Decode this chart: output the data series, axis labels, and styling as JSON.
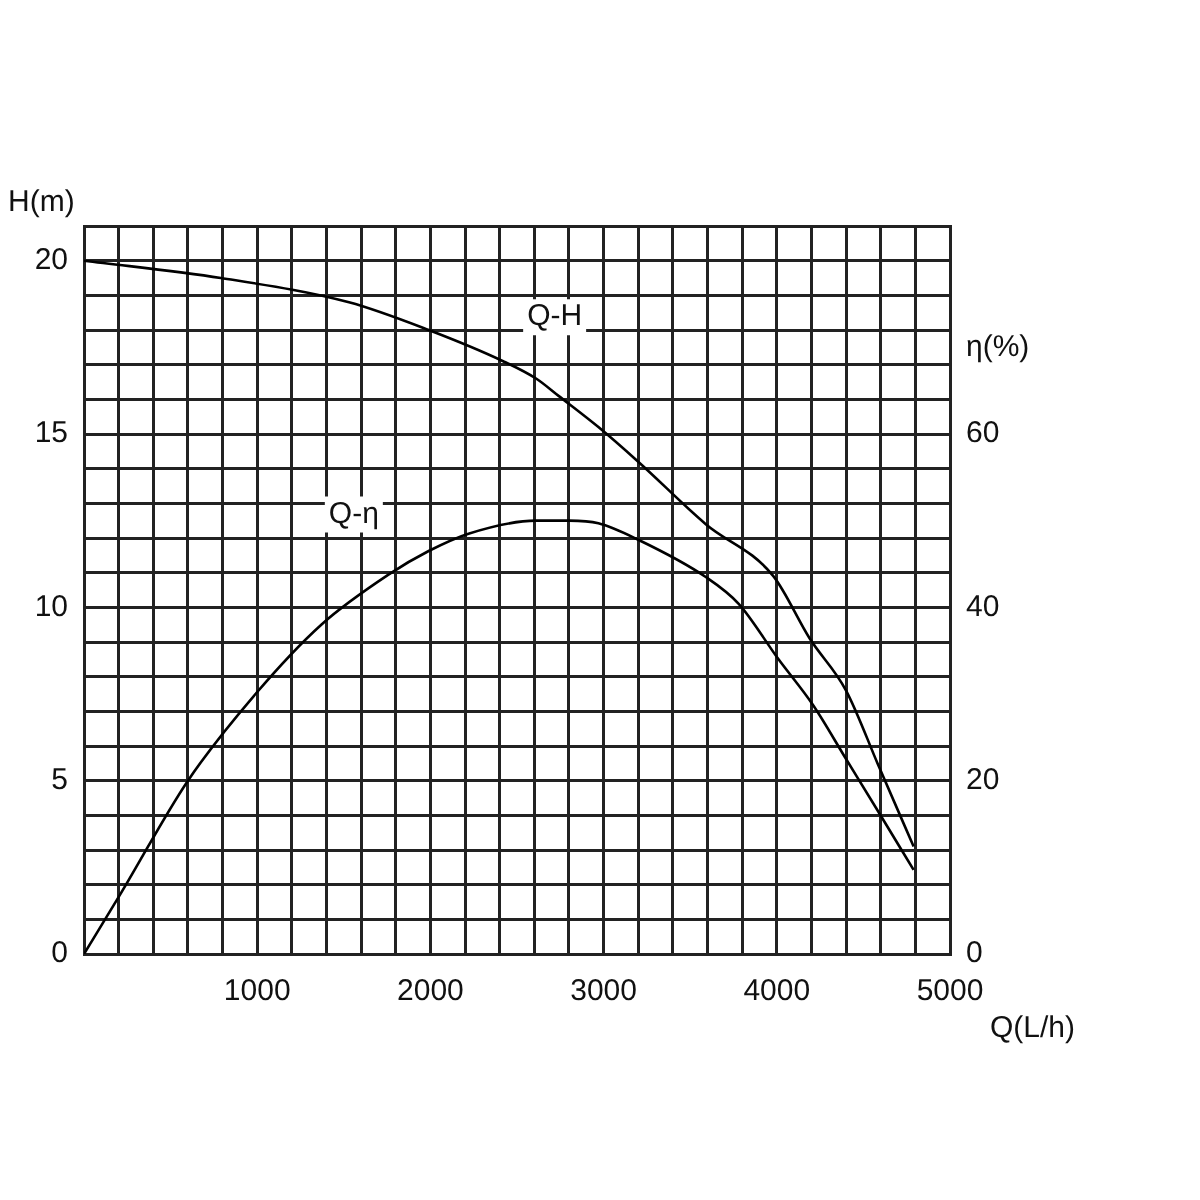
{
  "chart_data": {
    "type": "line",
    "xlabel": "Q(L/h)",
    "ylabel": "H(m)",
    "y2label": "η(%)",
    "xlim": [
      0,
      5000
    ],
    "xticks": [
      {
        "value": 0,
        "label": null
      },
      {
        "value": 200,
        "label": null
      },
      {
        "value": 400,
        "label": null
      },
      {
        "value": 600,
        "label": null
      },
      {
        "value": 800,
        "label": null
      },
      1000,
      {
        "value": 1200,
        "label": null
      },
      {
        "value": 1400,
        "label": null
      },
      {
        "value": 1600,
        "label": null
      },
      {
        "value": 1800,
        "label": null
      },
      2000,
      {
        "value": 2200,
        "label": null
      },
      {
        "value": 2400,
        "label": null
      },
      {
        "value": 2600,
        "label": null
      },
      {
        "value": 2800,
        "label": null
      },
      3000,
      {
        "value": 3200,
        "label": null
      },
      {
        "value": 3400,
        "label": null
      },
      {
        "value": 3600,
        "label": null
      },
      {
        "value": 3800,
        "label": null
      },
      4000,
      {
        "value": 4200,
        "label": null
      },
      {
        "value": 4400,
        "label": null
      },
      {
        "value": 4600,
        "label": null
      },
      {
        "value": 4800,
        "label": null
      },
      5000
    ],
    "ylim": [
      0,
      21
    ],
    "yticks": [
      0,
      {
        "value": 1,
        "label": null
      },
      {
        "value": 2,
        "label": null
      },
      {
        "value": 3,
        "label": null
      },
      {
        "value": 4,
        "label": null
      },
      5,
      {
        "value": 6,
        "label": null
      },
      {
        "value": 7,
        "label": null
      },
      {
        "value": 8,
        "label": null
      },
      {
        "value": 9,
        "label": null
      },
      10,
      {
        "value": 11,
        "label": null
      },
      {
        "value": 12,
        "label": null
      },
      {
        "value": 13,
        "label": null
      },
      {
        "value": 14,
        "label": null
      },
      15,
      {
        "value": 16,
        "label": null
      },
      {
        "value": 17,
        "label": null
      },
      {
        "value": 18,
        "label": null
      },
      {
        "value": 19,
        "label": null
      },
      20,
      {
        "value": 21,
        "label": null
      }
    ],
    "y2lim": [
      0,
      84
    ],
    "y2ticks": [
      0,
      20,
      40,
      60
    ],
    "grid": true,
    "legend": false,
    "marker": "none",
    "line_style": "solid",
    "series": [
      {
        "name": "Q-H",
        "color": "#000000",
        "x": [
          0,
          790,
          1530,
          1990,
          2420,
          2610,
          2740,
          2970,
          3200,
          3590,
          3980,
          4190,
          4400,
          4590,
          4790
        ],
        "values": [
          20,
          19.5,
          18.8,
          18,
          17.1,
          16.6,
          16.1,
          15.2,
          14.2,
          12.4,
          10.9,
          9.1,
          7.6,
          5.4,
          3.1
        ]
      },
      {
        "name": "Q-η",
        "color": "#000000",
        "axis": "y2",
        "x": [
          0,
          210,
          600,
          990,
          1370,
          1760,
          1990,
          2220,
          2610,
          2800,
          2970,
          3200,
          3590,
          3780,
          4010,
          4210,
          4400,
          4590,
          4790
        ],
        "values": [
          0,
          6.9,
          20,
          30,
          38,
          43.8,
          46.5,
          48.5,
          50,
          50,
          49.7,
          47.8,
          43.5,
          40.4,
          34,
          28.7,
          22.5,
          16.3,
          9.7
        ]
      }
    ]
  }
}
